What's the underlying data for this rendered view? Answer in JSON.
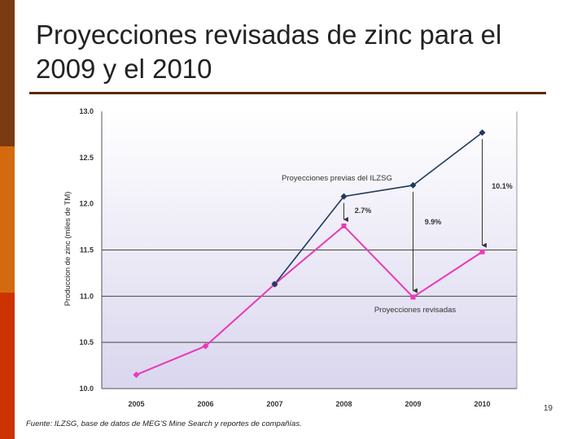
{
  "slide": {
    "title_line1": "Proyecciones revisadas de zinc para el",
    "title_line2": "2009 y el 2010",
    "page_number": "19",
    "source": "Fuente: ILZSG, base de datos de MEG'S Mine Search y reportes de compañías."
  },
  "colors": {
    "previous_series": "#1f3a5f",
    "revised_series": "#e83ab8",
    "plot_background": "#eceaf6",
    "accent_bar_1": "#7a3a12",
    "accent_bar_2": "#d46a10",
    "accent_bar_3": "#cc3300"
  },
  "chart_data": {
    "type": "line",
    "title": "",
    "xlabel": "",
    "ylabel": "Produccion de zinc (miles de TM)",
    "categories": [
      "2005",
      "2006",
      "2007",
      "2008",
      "2009",
      "2010"
    ],
    "ylim": [
      10.0,
      13.0
    ],
    "yticks": [
      "10.0",
      "10.5",
      "11.0",
      "11.5",
      "12.0",
      "12.5",
      "13.0"
    ],
    "grid": "horizontal",
    "series": [
      {
        "name": "Proyecciones previas del ILZSG",
        "values": [
          null,
          null,
          11.13,
          12.08,
          12.2,
          12.77
        ],
        "marker": "diamond"
      },
      {
        "name": "Proyecciones revisadas",
        "values": [
          10.15,
          10.46,
          11.13,
          11.76,
          10.99,
          11.48
        ],
        "marker": "square"
      }
    ],
    "annotations": [
      {
        "category": "2008",
        "label": "2.7%"
      },
      {
        "category": "2009",
        "label": "9.9%"
      },
      {
        "category": "2010",
        "label": "10.1%"
      }
    ]
  }
}
